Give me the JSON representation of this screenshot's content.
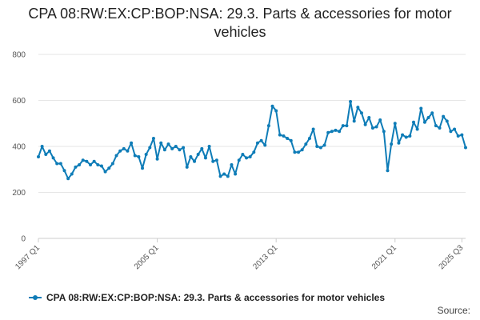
{
  "chart_data": {
    "type": "line",
    "title": "CPA 08:RW:EX:CP:BOP:NSA: 29.3. Parts & accessories for motor vehicles",
    "xlabel": "",
    "ylabel": "",
    "ylim": [
      0,
      800
    ],
    "yticks": [
      0,
      200,
      400,
      600,
      800
    ],
    "xticks": [
      "1997 Q1",
      "2005 Q1",
      "2013 Q1",
      "2021 Q1",
      "2025 Q3"
    ],
    "grid": true,
    "legend_position": "bottom",
    "color": "#0e7cb7",
    "series": [
      {
        "name": "CPA 08:RW:EX:CP:BOP:NSA: 29.3. Parts & accessories for motor vehicles",
        "x_start": "1997 Q1",
        "values": [
          355,
          400,
          365,
          380,
          350,
          325,
          325,
          295,
          260,
          280,
          310,
          320,
          340,
          335,
          320,
          335,
          320,
          315,
          290,
          305,
          325,
          360,
          380,
          390,
          380,
          415,
          360,
          355,
          305,
          365,
          395,
          435,
          345,
          415,
          385,
          410,
          390,
          400,
          385,
          395,
          310,
          355,
          335,
          365,
          390,
          350,
          400,
          335,
          340,
          270,
          280,
          270,
          320,
          280,
          340,
          365,
          350,
          355,
          375,
          415,
          425,
          405,
          490,
          575,
          555,
          450,
          445,
          435,
          425,
          375,
          375,
          385,
          410,
          435,
          475,
          400,
          395,
          405,
          460,
          465,
          470,
          465,
          490,
          490,
          595,
          510,
          570,
          545,
          495,
          525,
          480,
          485,
          515,
          465,
          295,
          410,
          500,
          415,
          450,
          440,
          445,
          505,
          475,
          565,
          505,
          525,
          545,
          490,
          480,
          530,
          510,
          465,
          475,
          445,
          450,
          395
        ]
      }
    ]
  },
  "legend": {
    "label": "CPA 08:RW:EX:CP:BOP:NSA: 29.3. Parts & accessories for motor vehicles"
  },
  "source_label": "Source:"
}
